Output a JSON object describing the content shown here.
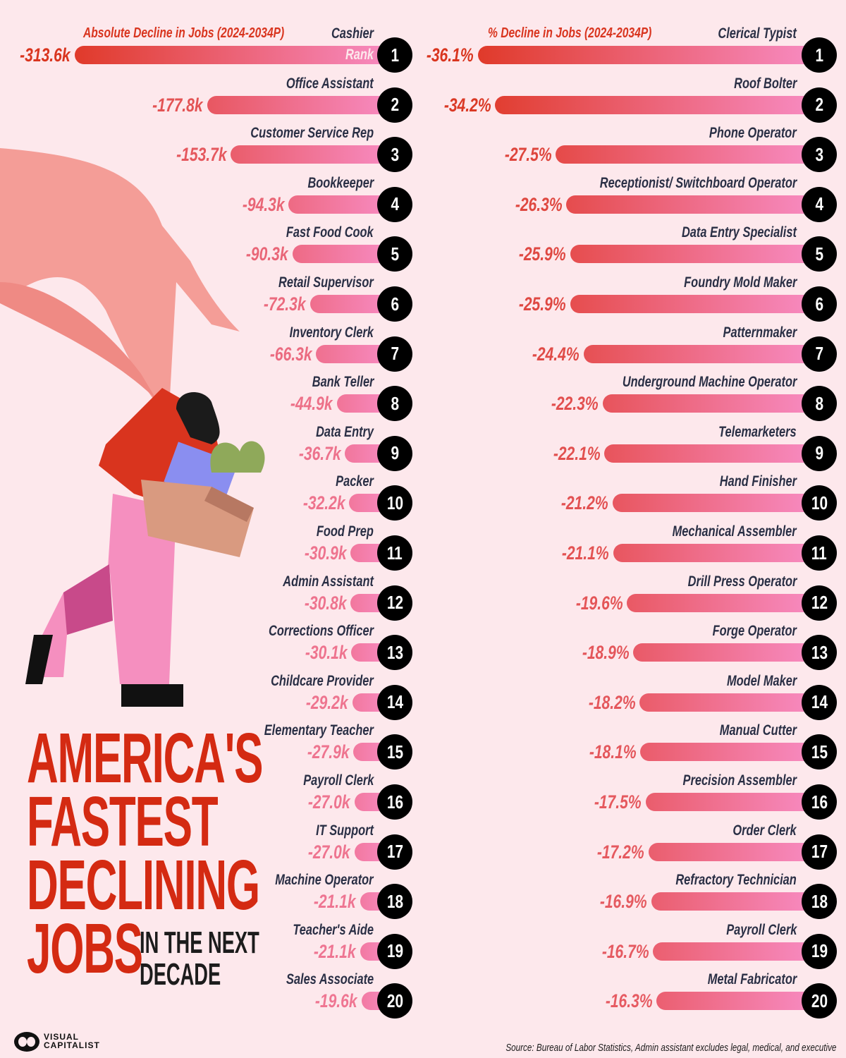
{
  "title": {
    "line1": "AMERICA'S",
    "line2": "FASTEST",
    "line3": "DECLINING",
    "line4": "JOBS",
    "line5a": "IN THE NEXT",
    "line5b": "DECADE"
  },
  "rank_label": "Rank",
  "source": "Source: Bureau of Labor Statistics, Admin assistant excludes legal, medical, and executive",
  "logo": {
    "line1": "VISUAL",
    "line2": "CAPITALIST"
  },
  "colors": {
    "background": "#fde8ec",
    "bar_start": "#e03a2a",
    "bar_end": "#f78ac0",
    "title": "#d42a12",
    "rank_circle": "#000000"
  },
  "chart_data": [
    {
      "type": "bar",
      "orientation": "horizontal",
      "title": "Absolute Decline in Jobs (2024-2034P)",
      "unit": "k",
      "categories": [
        "Cashier",
        "Office Assistant",
        "Customer Service Rep",
        "Bookkeeper",
        "Fast Food Cook",
        "Retail Supervisor",
        "Inventory Clerk",
        "Bank Teller",
        "Data Entry",
        "Packer",
        "Food Prep",
        "Admin Assistant",
        "Corrections Officer",
        "Childcare Provider",
        "Elementary Teacher",
        "Payroll Clerk",
        "IT Support",
        "Machine Operator",
        "Teacher's Aide",
        "Sales Associate"
      ],
      "values": [
        -313.6,
        -177.8,
        -153.7,
        -94.3,
        -90.3,
        -72.3,
        -66.3,
        -44.9,
        -36.7,
        -32.2,
        -30.9,
        -30.8,
        -30.1,
        -29.2,
        -27.9,
        -27.0,
        -27.0,
        -21.1,
        -21.1,
        -19.6
      ],
      "labels": [
        "-313.6k",
        "-177.8k",
        "-153.7k",
        "-94.3k",
        "-90.3k",
        "-72.3k",
        "-66.3k",
        "-44.9k",
        "-36.7k",
        "-32.2k",
        "-30.9k",
        "-30.8k",
        "-30.1k",
        "-29.2k",
        "-27.9k",
        "-27.0k",
        "-27.0k",
        "-21.1k",
        "-21.1k",
        "-19.6k"
      ]
    },
    {
      "type": "bar",
      "orientation": "horizontal",
      "title": "% Decline in Jobs (2024-2034P)",
      "unit": "%",
      "categories": [
        "Clerical Typist",
        "Roof Bolter",
        "Phone Operator",
        "Receptionist/ Switchboard Operator",
        "Data Entry Specialist",
        "Foundry Mold Maker",
        "Patternmaker",
        "Underground Machine Operator",
        "Telemarketers",
        "Hand Finisher",
        "Mechanical Assembler",
        "Drill Press Operator",
        "Forge Operator",
        "Model Maker",
        "Manual Cutter",
        "Precision Assembler",
        "Order Clerk",
        "Refractory Technician",
        "Payroll Clerk",
        "Metal Fabricator"
      ],
      "values": [
        -36.1,
        -34.2,
        -27.5,
        -26.3,
        -25.9,
        -25.9,
        -24.4,
        -22.3,
        -22.1,
        -21.2,
        -21.1,
        -19.6,
        -18.9,
        -18.2,
        -18.1,
        -17.5,
        -17.2,
        -16.9,
        -16.7,
        -16.3
      ],
      "labels": [
        "-36.1%",
        "-34.2%",
        "-27.5%",
        "-26.3%",
        "-25.9%",
        "-25.9%",
        "-24.4%",
        "-22.3%",
        "-22.1%",
        "-21.2%",
        "-21.1%",
        "-19.6%",
        "-18.9%",
        "-18.2%",
        "-18.1%",
        "-17.5%",
        "-17.2%",
        "-16.9%",
        "-16.7%",
        "-16.3%"
      ]
    }
  ]
}
